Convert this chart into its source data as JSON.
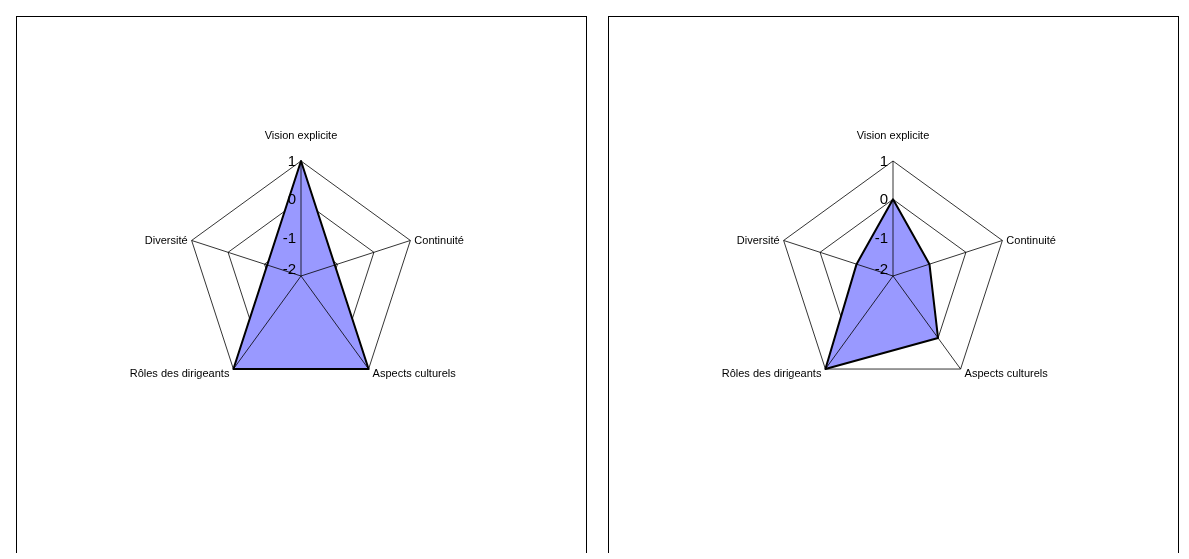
{
  "chart_data": [
    {
      "type": "radar",
      "categories": [
        "Vision explicite",
        "Continuité",
        "Aspects culturels",
        "Rôles des dirigeants",
        "Diversité"
      ],
      "ylim": [
        -2,
        1
      ],
      "yticks": [
        -2,
        -1,
        0,
        1
      ],
      "series": [
        {
          "color": "#9999ff",
          "values": [
            1,
            null,
            1,
            1,
            null
          ]
        }
      ]
    },
    {
      "type": "radar",
      "categories": [
        "Vision explicite",
        "Continuité",
        "Aspects culturels",
        "Rôles des dirigeants",
        "Diversité"
      ],
      "ylim": [
        -2,
        1
      ],
      "yticks": [
        -2,
        -1,
        0,
        1
      ],
      "series": [
        {
          "color": "#9999ff",
          "values": [
            0,
            -1,
            0,
            1,
            -1
          ]
        }
      ]
    }
  ]
}
